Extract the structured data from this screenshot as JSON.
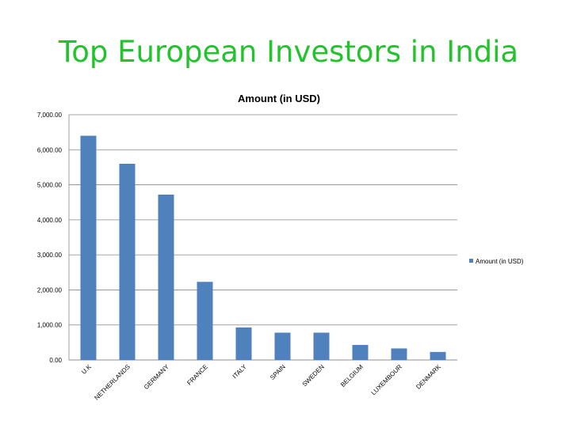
{
  "slide": {
    "title": "Top European Investors in India"
  },
  "colors": {
    "title": "#22c32c",
    "bar": "#4f81bd",
    "grid": "#888888"
  },
  "chart_data": {
    "type": "bar",
    "title": "Amount (in USD)",
    "xlabel": "",
    "ylabel": "",
    "categories": [
      "U.K",
      "NETHERLANDS",
      "GERMANY",
      "FRANCE",
      "ITALY",
      "SPAIN",
      "SWEDEN",
      "BELGIUM",
      "LUXEMBOUR",
      "DENMARK"
    ],
    "series": [
      {
        "name": "Amount (in USD)",
        "values": [
          6400,
          5600,
          4720,
          2230,
          930,
          780,
          780,
          430,
          330,
          230
        ]
      }
    ],
    "ylim": [
      0,
      7000
    ],
    "yticks": [
      "0.00",
      "1,000.00",
      "2,000.00",
      "3,000.00",
      "4,000.00",
      "5,000.00",
      "6,000.00",
      "7,000.00"
    ],
    "grid": true,
    "legend_position": "right"
  }
}
